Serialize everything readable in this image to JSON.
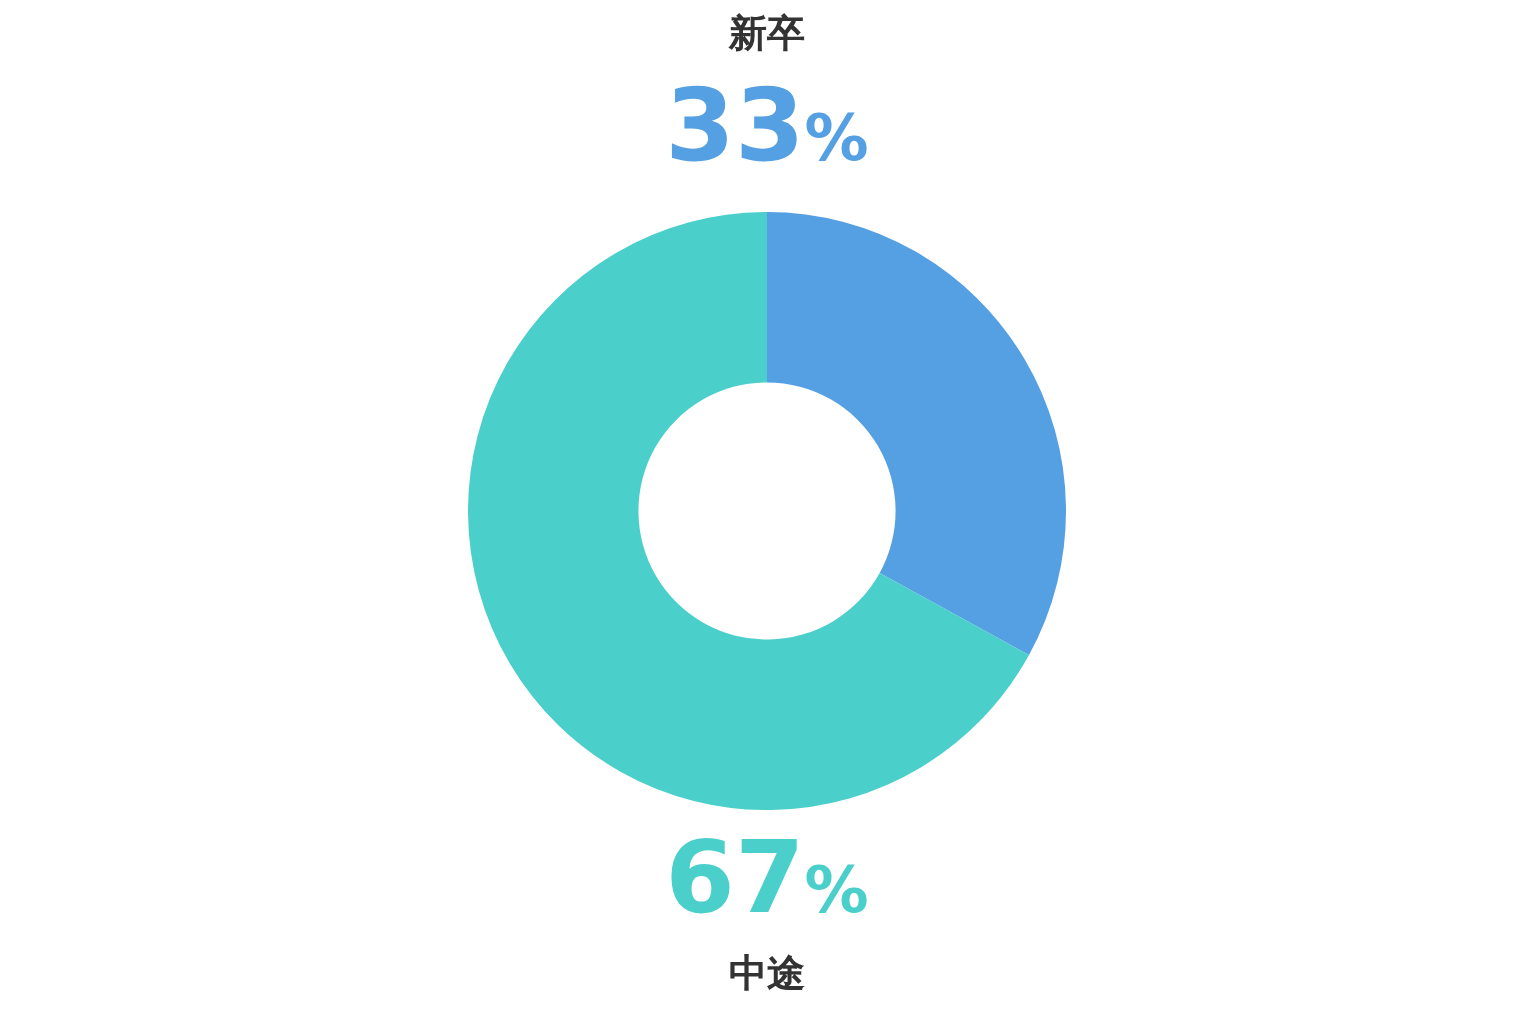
{
  "chart_data": {
    "type": "donut",
    "categories": [
      "新卒",
      "中途"
    ],
    "values": [
      33,
      67
    ],
    "colors": [
      "#559fe3",
      "#4acfcb"
    ],
    "value_labels": [
      "33%",
      "67%"
    ],
    "legend": false
  }
}
